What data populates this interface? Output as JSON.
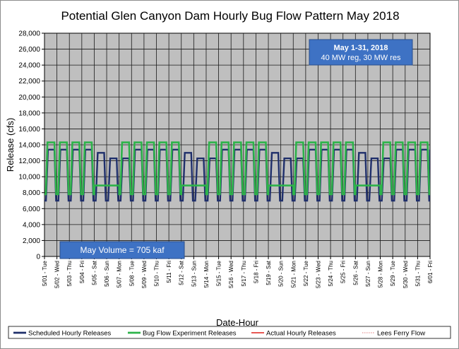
{
  "chart_data": {
    "type": "line",
    "title": "Potential Glen Canyon Dam Hourly Bug Flow Pattern May 2018",
    "xlabel": "Date-Hour",
    "ylabel": "Release (cfs)",
    "ylim": [
      0,
      28000
    ],
    "yticks": [
      "0",
      "2,000",
      "4,000",
      "6,000",
      "8,000",
      "10,000",
      "12,000",
      "14,000",
      "16,000",
      "18,000",
      "20,000",
      "22,000",
      "24,000",
      "26,000",
      "28,000"
    ],
    "grid": true,
    "plot_background": "#bfbfbf",
    "days": [
      {
        "label": "5/01 - Tue",
        "dow": "Tue"
      },
      {
        "label": "5/02 - Wed",
        "dow": "Wed"
      },
      {
        "label": "5/03 - Thu",
        "dow": "Thu"
      },
      {
        "label": "5/04 - Fri",
        "dow": "Fri"
      },
      {
        "label": "5/05 - Sat",
        "dow": "Sat"
      },
      {
        "label": "5/06 - Sun",
        "dow": "Sun"
      },
      {
        "label": "5/07 - Mon",
        "dow": "Mon"
      },
      {
        "label": "5/08 - Tue",
        "dow": "Tue"
      },
      {
        "label": "5/09 - Wed",
        "dow": "Wed"
      },
      {
        "label": "5/10 - Thu",
        "dow": "Thu"
      },
      {
        "label": "5/11 - Fri",
        "dow": "Fri"
      },
      {
        "label": "5/12 - Sat",
        "dow": "Sat"
      },
      {
        "label": "5/13 - Sun",
        "dow": "Sun"
      },
      {
        "label": "5/14 - Mon",
        "dow": "Mon"
      },
      {
        "label": "5/15 - Tue",
        "dow": "Tue"
      },
      {
        "label": "5/16 - Wed",
        "dow": "Wed"
      },
      {
        "label": "5/17 - Thu",
        "dow": "Thu"
      },
      {
        "label": "5/18 - Fri",
        "dow": "Fri"
      },
      {
        "label": "5/19 - Sat",
        "dow": "Sat"
      },
      {
        "label": "5/20 - Sun",
        "dow": "Sun"
      },
      {
        "label": "5/21 - Mon",
        "dow": "Mon"
      },
      {
        "label": "5/22 - Tue",
        "dow": "Tue"
      },
      {
        "label": "5/23 - Wed",
        "dow": "Wed"
      },
      {
        "label": "5/24 - Thu",
        "dow": "Thu"
      },
      {
        "label": "5/25 - Fri",
        "dow": "Fri"
      },
      {
        "label": "5/26 - Sat",
        "dow": "Sat"
      },
      {
        "label": "5/27 - Sun",
        "dow": "Sun"
      },
      {
        "label": "5/28 - Mon",
        "dow": "Mon"
      },
      {
        "label": "5/29 - Tue",
        "dow": "Tue"
      },
      {
        "label": "5/30 - Wed",
        "dow": "Wed"
      },
      {
        "label": "5/31 - Thu",
        "dow": "Thu"
      },
      {
        "label": "6/01 - Fri",
        "dow": "Fri"
      }
    ],
    "series": [
      {
        "name": "Scheduled Hourly Releases",
        "color": "#1f2f6b",
        "pattern": {
          "weekday": {
            "low": 7000,
            "high": 13400
          },
          "saturday": {
            "low": 7000,
            "high": 13000
          },
          "sunday_monday": {
            "low": 7000,
            "high": 12300
          }
        }
      },
      {
        "name": "Bug Flow Experiment Releases",
        "color": "#2db34a",
        "pattern": {
          "weekday": {
            "low": 7800,
            "high": 14300
          },
          "weekend_steady": 8900
        }
      },
      {
        "name": "Actual Hourly Releases",
        "color": "#e0201b"
      },
      {
        "name": "Lees Ferry Flow",
        "color": "#e07a7a"
      }
    ],
    "annotations": {
      "period_title": "May 1-31, 2018",
      "period_sub": "40 MW reg, 30 MW res",
      "volume": "May Volume = 705 kaf"
    },
    "legend_placement": "bottom"
  }
}
